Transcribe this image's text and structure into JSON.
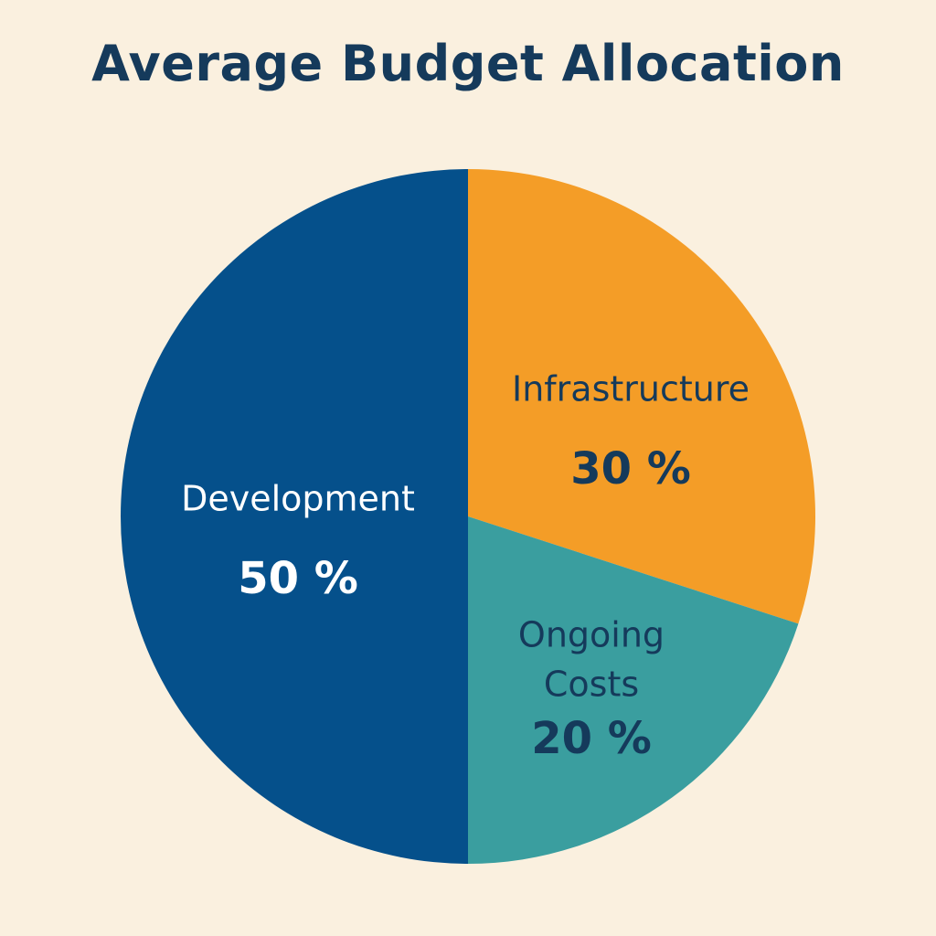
{
  "chart_data": {
    "type": "pie",
    "title": "Average Budget Allocation",
    "slices": [
      {
        "label": [
          "Infrastructure"
        ],
        "value": 30,
        "display": "30 %",
        "color": "#f49d27",
        "text_color": "#153a5b"
      },
      {
        "label": [
          "Ongoing",
          "Costs"
        ],
        "value": 20,
        "display": "20 %",
        "color": "#3a9e9f",
        "text_color": "#153a5b"
      },
      {
        "label": [
          "Development"
        ],
        "value": 50,
        "display": "50 %",
        "color": "#05508b",
        "text_color": "#ffffff"
      }
    ],
    "start": "12 o'clock",
    "direction": "clockwise",
    "legend": "none"
  },
  "colors": {
    "background": "#faf0df",
    "title": "#153a5b"
  }
}
